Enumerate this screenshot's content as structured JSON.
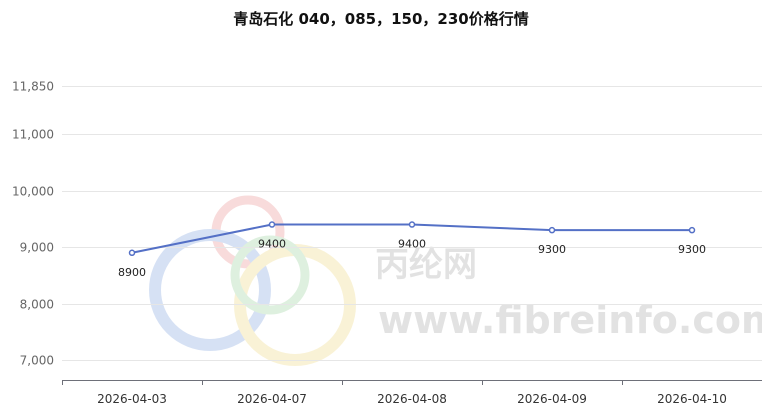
{
  "chart_data": {
    "type": "line",
    "title": "青岛石化 040，085，150，230价格行情",
    "xlabel": "",
    "ylabel": "",
    "categories": [
      "2026-04-03",
      "2026-04-07",
      "2026-04-08",
      "2026-04-09",
      "2026-04-10"
    ],
    "series": [
      {
        "values": [
          8900,
          9400,
          9400,
          9300,
          9300
        ],
        "color": "#5470c6"
      }
    ],
    "yticks": [
      "7,000",
      "8,000",
      "9,000",
      "10,000",
      "11,000",
      "11,850"
    ],
    "ytick_values": [
      7000,
      8000,
      9000,
      10000,
      11000,
      11850
    ],
    "ylim": [
      6650,
      11850
    ],
    "grid": true,
    "legend": "none"
  },
  "watermark": {
    "cn": "丙纶网",
    "url": "www.fibreinfo.com",
    "ring_colors": [
      "#e06060",
      "#4a7bd0",
      "#e8c84a",
      "#6fbf73"
    ]
  }
}
